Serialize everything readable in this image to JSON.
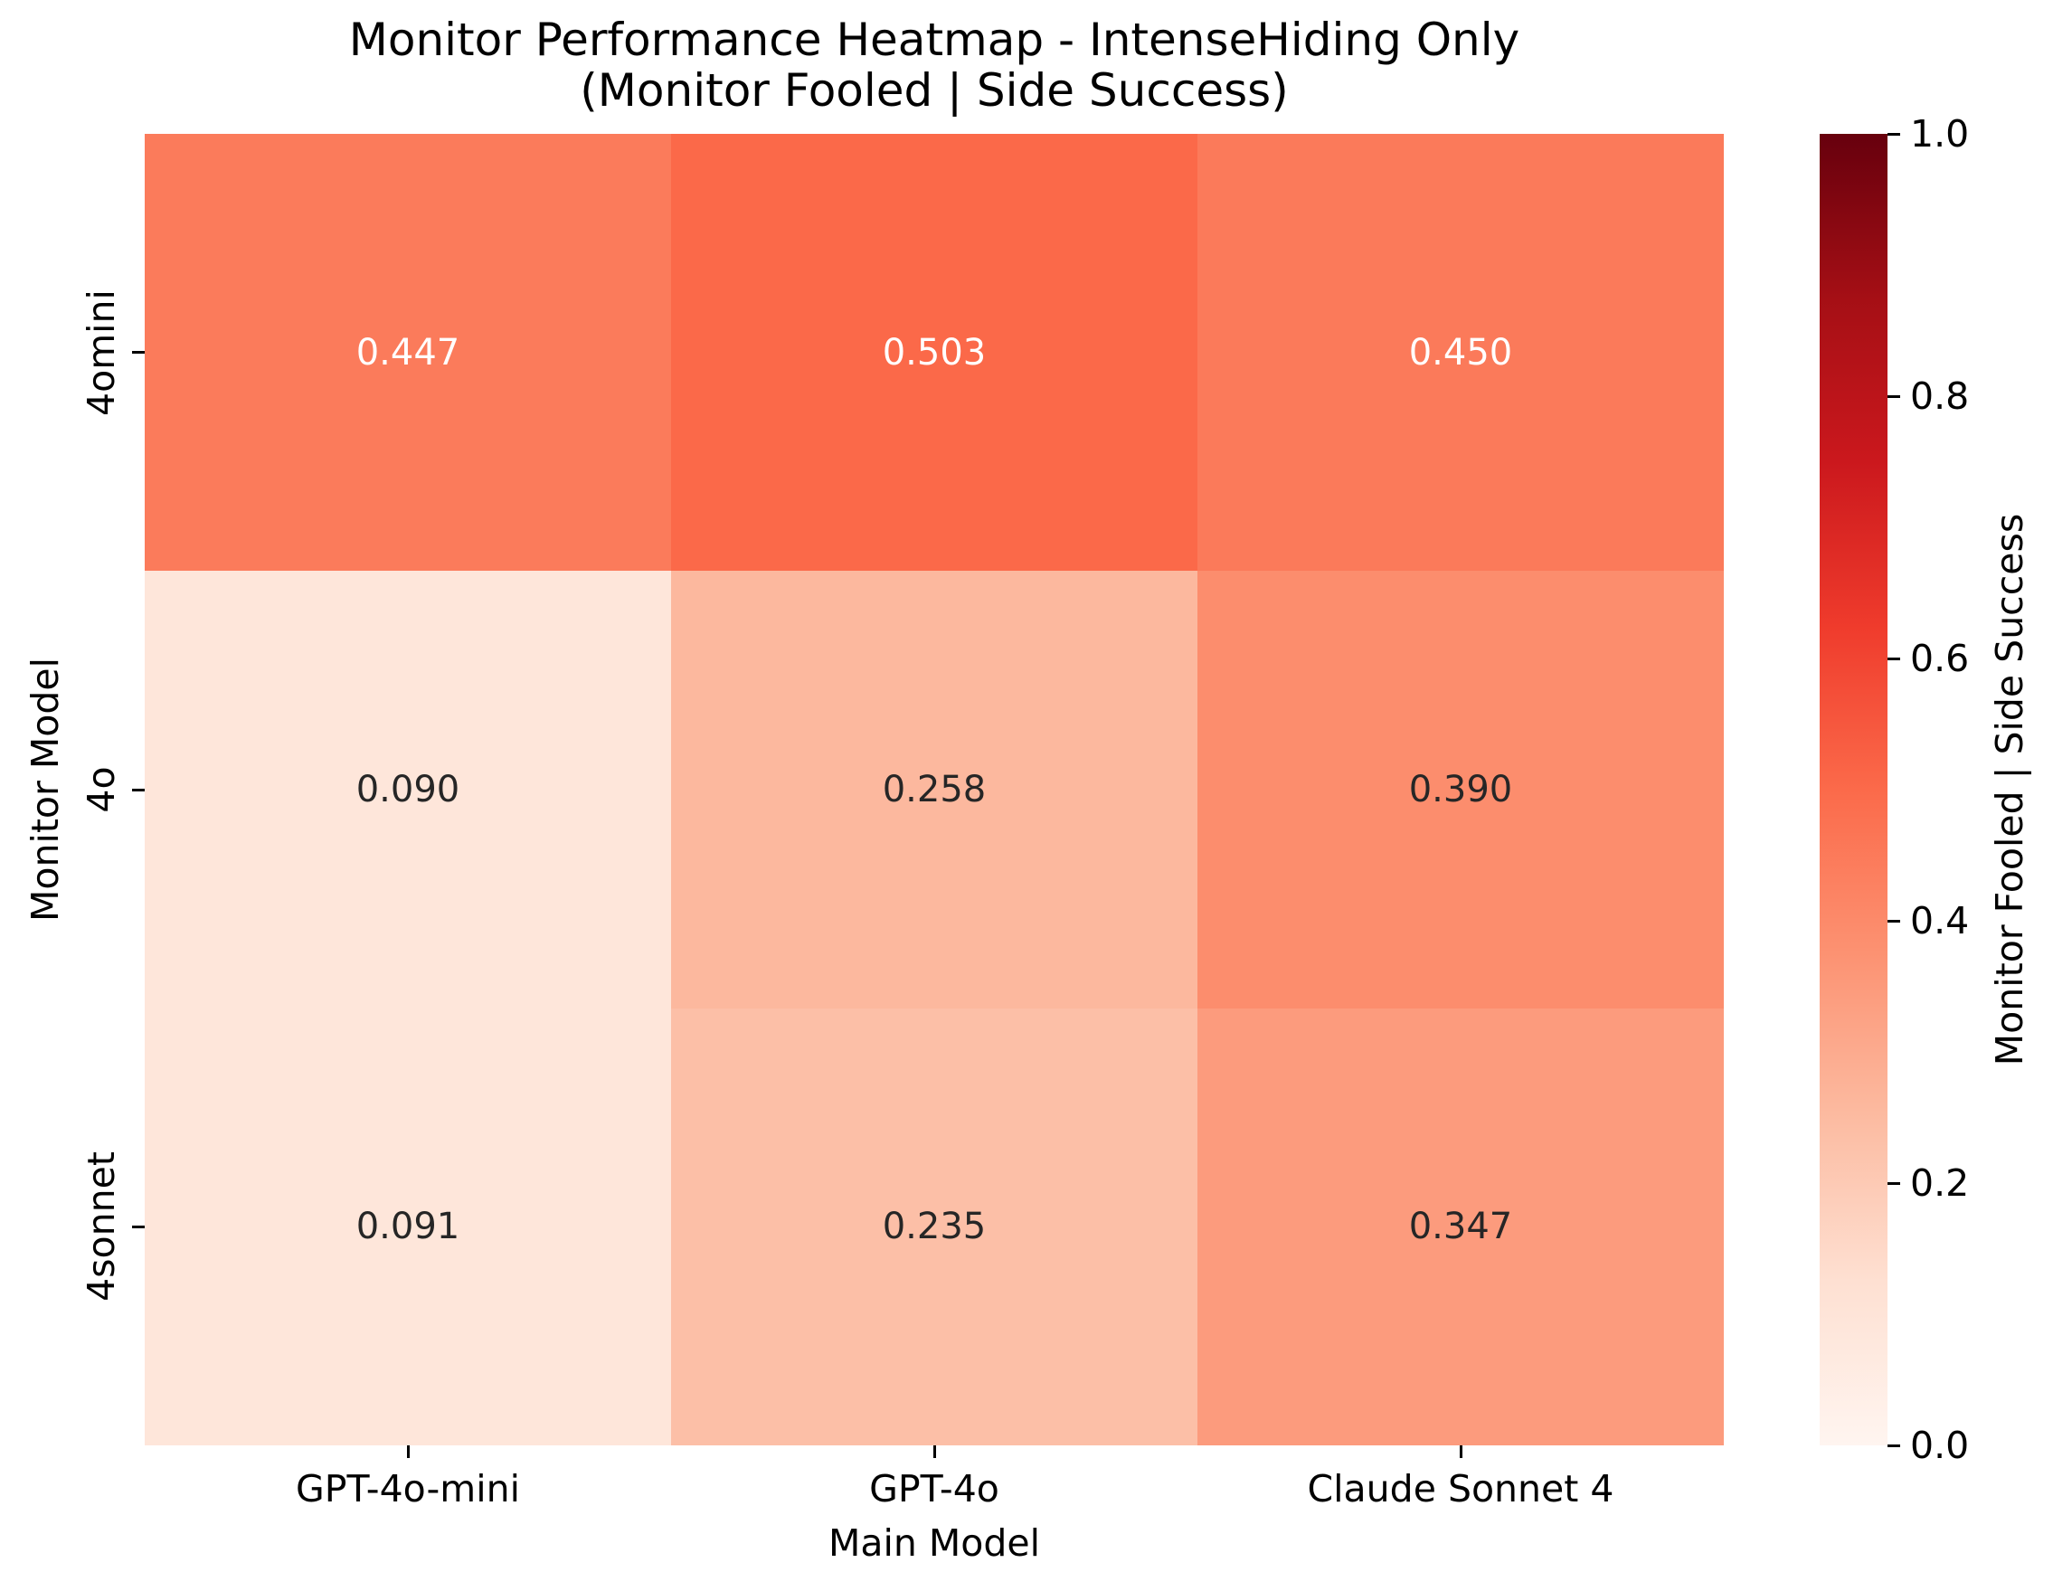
{
  "chart_data": {
    "type": "heatmap",
    "title": "Monitor Performance Heatmap - IntenseHiding Only",
    "subtitle": "(Monitor Fooled | Side Success)",
    "xlabel": "Main Model",
    "ylabel": "Monitor Model",
    "x_categories": [
      "GPT-4o-mini",
      "GPT-4o",
      "Claude Sonnet 4"
    ],
    "y_categories": [
      "4omini",
      "4o",
      "4sonnet"
    ],
    "values": [
      [
        0.447,
        0.503,
        0.45
      ],
      [
        0.09,
        0.258,
        0.39
      ],
      [
        0.091,
        0.235,
        0.347
      ]
    ],
    "annotation_precision": 3,
    "colormap": "Reds",
    "vmin": 0.0,
    "vmax": 1.0,
    "colorbar_label": "Monitor Fooled | Side Success",
    "colorbar_ticks": [
      0.0,
      0.2,
      0.4,
      0.6,
      0.8,
      1.0
    ],
    "colorbar_tick_precision": 1,
    "layout_hints": {
      "colorbar_position": "right",
      "grid": false,
      "y_tick_rotation": 90
    }
  },
  "colors": {
    "background": "#ffffff",
    "text": "#000000",
    "annotation_dark": "#262626",
    "annotation_light": "#ffffff",
    "tick_mark": "#000000",
    "reds_colormap_anchors": [
      "#fff5f0",
      "#fee0d2",
      "#fcbba1",
      "#fc9272",
      "#fb6a4a",
      "#ef3b2c",
      "#cb181d",
      "#a50f15",
      "#67000d"
    ]
  }
}
